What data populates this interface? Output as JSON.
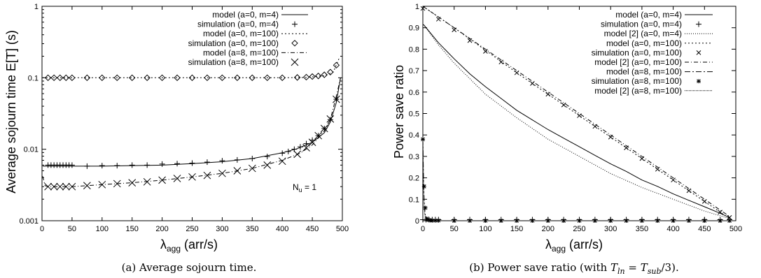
{
  "chart_data": [
    {
      "type": "line",
      "id": "a",
      "ylabel": "Average sojourn time E[T] (s)",
      "xlabel_main": "λ",
      "xlabel_sub": "agg",
      "xlabel_rest": " (arr/s)",
      "caption": "(a)  Average sojourn time.",
      "yscale": "log",
      "xlim": [
        0,
        500
      ],
      "ylim": [
        0.001,
        1
      ],
      "xticks": [
        "0",
        "50",
        "100",
        "150",
        "200",
        "250",
        "300",
        "350",
        "400",
        "450",
        "500"
      ],
      "yticks": [
        "0.001",
        "0.01",
        "0.1",
        "1"
      ],
      "annotation_main": "N",
      "annotation_sub": "u",
      "annotation_rest": " = 1",
      "series": [
        {
          "name": "model (a=0, m=4)",
          "style": "solid",
          "x": [
            1,
            25,
            50,
            100,
            150,
            200,
            250,
            300,
            350,
            400,
            425,
            450,
            470,
            480,
            490,
            497
          ],
          "y": [
            0.0058,
            0.0058,
            0.0058,
            0.0058,
            0.0059,
            0.006,
            0.0063,
            0.0067,
            0.0074,
            0.0089,
            0.0102,
            0.0125,
            0.017,
            0.024,
            0.045,
            0.1
          ]
        },
        {
          "name": "simulation (a=0, m=4)",
          "marker": "plus",
          "x": [
            10,
            15,
            20,
            25,
            30,
            35,
            40,
            45,
            50,
            75,
            100,
            125,
            150,
            175,
            200,
            225,
            250,
            275,
            300,
            325,
            350,
            375,
            400,
            410,
            420,
            430,
            440,
            450,
            460,
            470,
            480,
            490
          ],
          "y": [
            0.006,
            0.006,
            0.006,
            0.006,
            0.006,
            0.006,
            0.006,
            0.006,
            0.006,
            0.0058,
            0.0059,
            0.0059,
            0.006,
            0.006,
            0.0062,
            0.0063,
            0.0064,
            0.0066,
            0.0069,
            0.0071,
            0.0074,
            0.0079,
            0.0088,
            0.0093,
            0.01,
            0.0108,
            0.012,
            0.0134,
            0.0155,
            0.0195,
            0.026,
            0.05
          ]
        },
        {
          "name": "model (a=0, m=100)",
          "style": "dotted",
          "x": [
            1,
            100,
            200,
            300,
            400,
            440,
            470,
            485,
            495
          ],
          "y": [
            0.1,
            0.1,
            0.1,
            0.1,
            0.1,
            0.101,
            0.107,
            0.12,
            0.19
          ]
        },
        {
          "name": "simulation (a=0, m=100)",
          "marker": "diamond",
          "x": [
            10,
            20,
            30,
            40,
            50,
            75,
            100,
            125,
            150,
            175,
            200,
            225,
            250,
            275,
            300,
            325,
            350,
            375,
            400,
            425,
            440,
            450,
            460,
            470,
            480,
            490
          ],
          "y": [
            0.1,
            0.1,
            0.1,
            0.1,
            0.1,
            0.1,
            0.1,
            0.1,
            0.1,
            0.1,
            0.1,
            0.1,
            0.1,
            0.1,
            0.1,
            0.1,
            0.1,
            0.1,
            0.1,
            0.101,
            0.102,
            0.104,
            0.106,
            0.11,
            0.12,
            0.15
          ]
        },
        {
          "name": "model (a=8, m=100)",
          "style": "dashdot",
          "x": [
            1,
            5,
            10,
            50,
            100,
            150,
            200,
            250,
            300,
            350,
            400,
            430,
            450,
            470,
            480,
            490,
            497
          ],
          "y": [
            0.0042,
            0.0031,
            0.003,
            0.003,
            0.0032,
            0.0034,
            0.0037,
            0.0041,
            0.0046,
            0.0054,
            0.007,
            0.0088,
            0.0115,
            0.018,
            0.026,
            0.055,
            0.1
          ]
        },
        {
          "name": "simulation (a=8, m=100)",
          "marker": "cross",
          "x": [
            10,
            20,
            30,
            40,
            50,
            75,
            100,
            125,
            150,
            175,
            200,
            225,
            250,
            275,
            300,
            325,
            350,
            375,
            400,
            425,
            440,
            450,
            460,
            470,
            480,
            490
          ],
          "y": [
            0.003,
            0.003,
            0.003,
            0.003,
            0.003,
            0.0031,
            0.0032,
            0.0033,
            0.0034,
            0.0035,
            0.0037,
            0.0039,
            0.0041,
            0.0043,
            0.0046,
            0.005,
            0.0054,
            0.006,
            0.0068,
            0.0085,
            0.0105,
            0.0125,
            0.0155,
            0.0195,
            0.0265,
            0.05
          ]
        }
      ]
    },
    {
      "type": "line",
      "id": "b",
      "ylabel": "Power save ratio",
      "xlabel_main": "λ",
      "xlabel_sub": "agg",
      "xlabel_rest": " (arr/s)",
      "caption_pre": "(b)  Power save ratio (with ",
      "caption_math": "T",
      "caption_sub1": "ln",
      "caption_mid": " = ",
      "caption_math2": "T",
      "caption_sub2": "sub",
      "caption_post": "/3).",
      "yscale": "linear",
      "xlim": [
        0,
        500
      ],
      "ylim": [
        0,
        1
      ],
      "xticks": [
        "0",
        "50",
        "100",
        "150",
        "200",
        "250",
        "300",
        "350",
        "400",
        "450",
        "500"
      ],
      "yticks": [
        "0",
        "0.1",
        "0.2",
        "0.3",
        "0.4",
        "0.5",
        "0.6",
        "0.7",
        "0.8",
        "0.9",
        "1"
      ],
      "series": [
        {
          "name": "model (a=0, m=4)",
          "style": "solid",
          "x": [
            1,
            25,
            50,
            75,
            100,
            125,
            150,
            175,
            200,
            225,
            250,
            275,
            300,
            325,
            350,
            375,
            400,
            425,
            450,
            475,
            490
          ],
          "y": [
            0.915,
            0.83,
            0.755,
            0.685,
            0.625,
            0.57,
            0.515,
            0.47,
            0.425,
            0.385,
            0.345,
            0.305,
            0.265,
            0.23,
            0.19,
            0.16,
            0.125,
            0.095,
            0.065,
            0.035,
            0.015
          ]
        },
        {
          "name": "simulation (a=0, m=4)",
          "marker": "plus",
          "x": [
            0,
            5,
            10,
            15,
            20,
            25,
            50,
            75,
            100,
            125,
            150,
            175,
            200,
            225,
            250,
            275,
            300,
            325,
            350,
            375,
            400,
            425,
            450,
            475,
            490
          ],
          "y": [
            0.005,
            0.005,
            0.005,
            0.005,
            0.005,
            0.005,
            0.005,
            0.005,
            0.005,
            0.005,
            0.005,
            0.005,
            0.005,
            0.005,
            0.005,
            0.005,
            0.005,
            0.005,
            0.005,
            0.005,
            0.005,
            0.005,
            0.005,
            0.005,
            0.005
          ]
        },
        {
          "name": "model [2] (a=0, m=4)",
          "style": "dotdot",
          "x": [
            1,
            25,
            50,
            100,
            150,
            200,
            250,
            300,
            350,
            400,
            450,
            490
          ],
          "y": [
            0.915,
            0.82,
            0.735,
            0.59,
            0.48,
            0.38,
            0.3,
            0.22,
            0.155,
            0.1,
            0.045,
            0.01
          ]
        },
        {
          "name": "model (a=0, m=100)",
          "style": "dotted",
          "x": [
            0,
            50,
            100,
            150,
            200,
            250,
            300,
            350,
            400,
            450,
            490
          ],
          "y": [
            1,
            0.9,
            0.795,
            0.69,
            0.59,
            0.49,
            0.39,
            0.29,
            0.19,
            0.09,
            0.01
          ]
        },
        {
          "name": "simulation (a=0, m=100)",
          "marker": "x",
          "x": [
            0,
            25,
            50,
            75,
            100,
            125,
            150,
            175,
            200,
            225,
            250,
            275,
            300,
            325,
            350,
            375,
            400,
            425,
            450,
            475,
            490
          ],
          "y": [
            0.99,
            0.94,
            0.89,
            0.84,
            0.79,
            0.74,
            0.69,
            0.64,
            0.59,
            0.54,
            0.49,
            0.44,
            0.39,
            0.34,
            0.29,
            0.24,
            0.19,
            0.14,
            0.09,
            0.04,
            0.015
          ]
        },
        {
          "name": "model [2] (a=0, m=100)",
          "style": "dashdot",
          "x": [
            0,
            50,
            100,
            150,
            200,
            250,
            300,
            350,
            400,
            450,
            490
          ],
          "y": [
            1,
            0.9,
            0.8,
            0.7,
            0.6,
            0.5,
            0.4,
            0.3,
            0.2,
            0.1,
            0.02
          ]
        },
        {
          "name": "model (a=8, m=100)",
          "style": "dashdot2",
          "x": [
            0,
            1,
            2,
            3,
            4,
            5,
            6,
            8,
            10,
            15,
            20
          ],
          "y": [
            0.38,
            0.2,
            0.1,
            0.05,
            0.02,
            0.01,
            0.005,
            0.003,
            0.002,
            0.001,
            0
          ]
        },
        {
          "name": "simulation (a=8, m=100)",
          "marker": "star",
          "x": [
            0,
            2,
            4,
            6,
            8,
            10,
            12,
            15,
            20,
            25,
            50,
            75,
            100,
            125,
            150,
            175,
            200,
            225,
            250,
            275,
            300,
            325,
            350,
            375,
            400,
            425,
            450,
            475,
            490
          ],
          "y": [
            0.38,
            0.16,
            0.06,
            0.01,
            0.005,
            0.003,
            0.002,
            0.001,
            0.001,
            0.001,
            0,
            0,
            0,
            0,
            0,
            0,
            0,
            0,
            0,
            0,
            0,
            0,
            0,
            0,
            0,
            0,
            0,
            0,
            0
          ]
        },
        {
          "name": "model [2] (a=8, m=100)",
          "style": "finedot",
          "x": [
            0,
            1,
            2,
            3,
            5,
            10
          ],
          "y": [
            0.38,
            0.18,
            0.08,
            0.03,
            0.01,
            0
          ]
        }
      ]
    }
  ]
}
